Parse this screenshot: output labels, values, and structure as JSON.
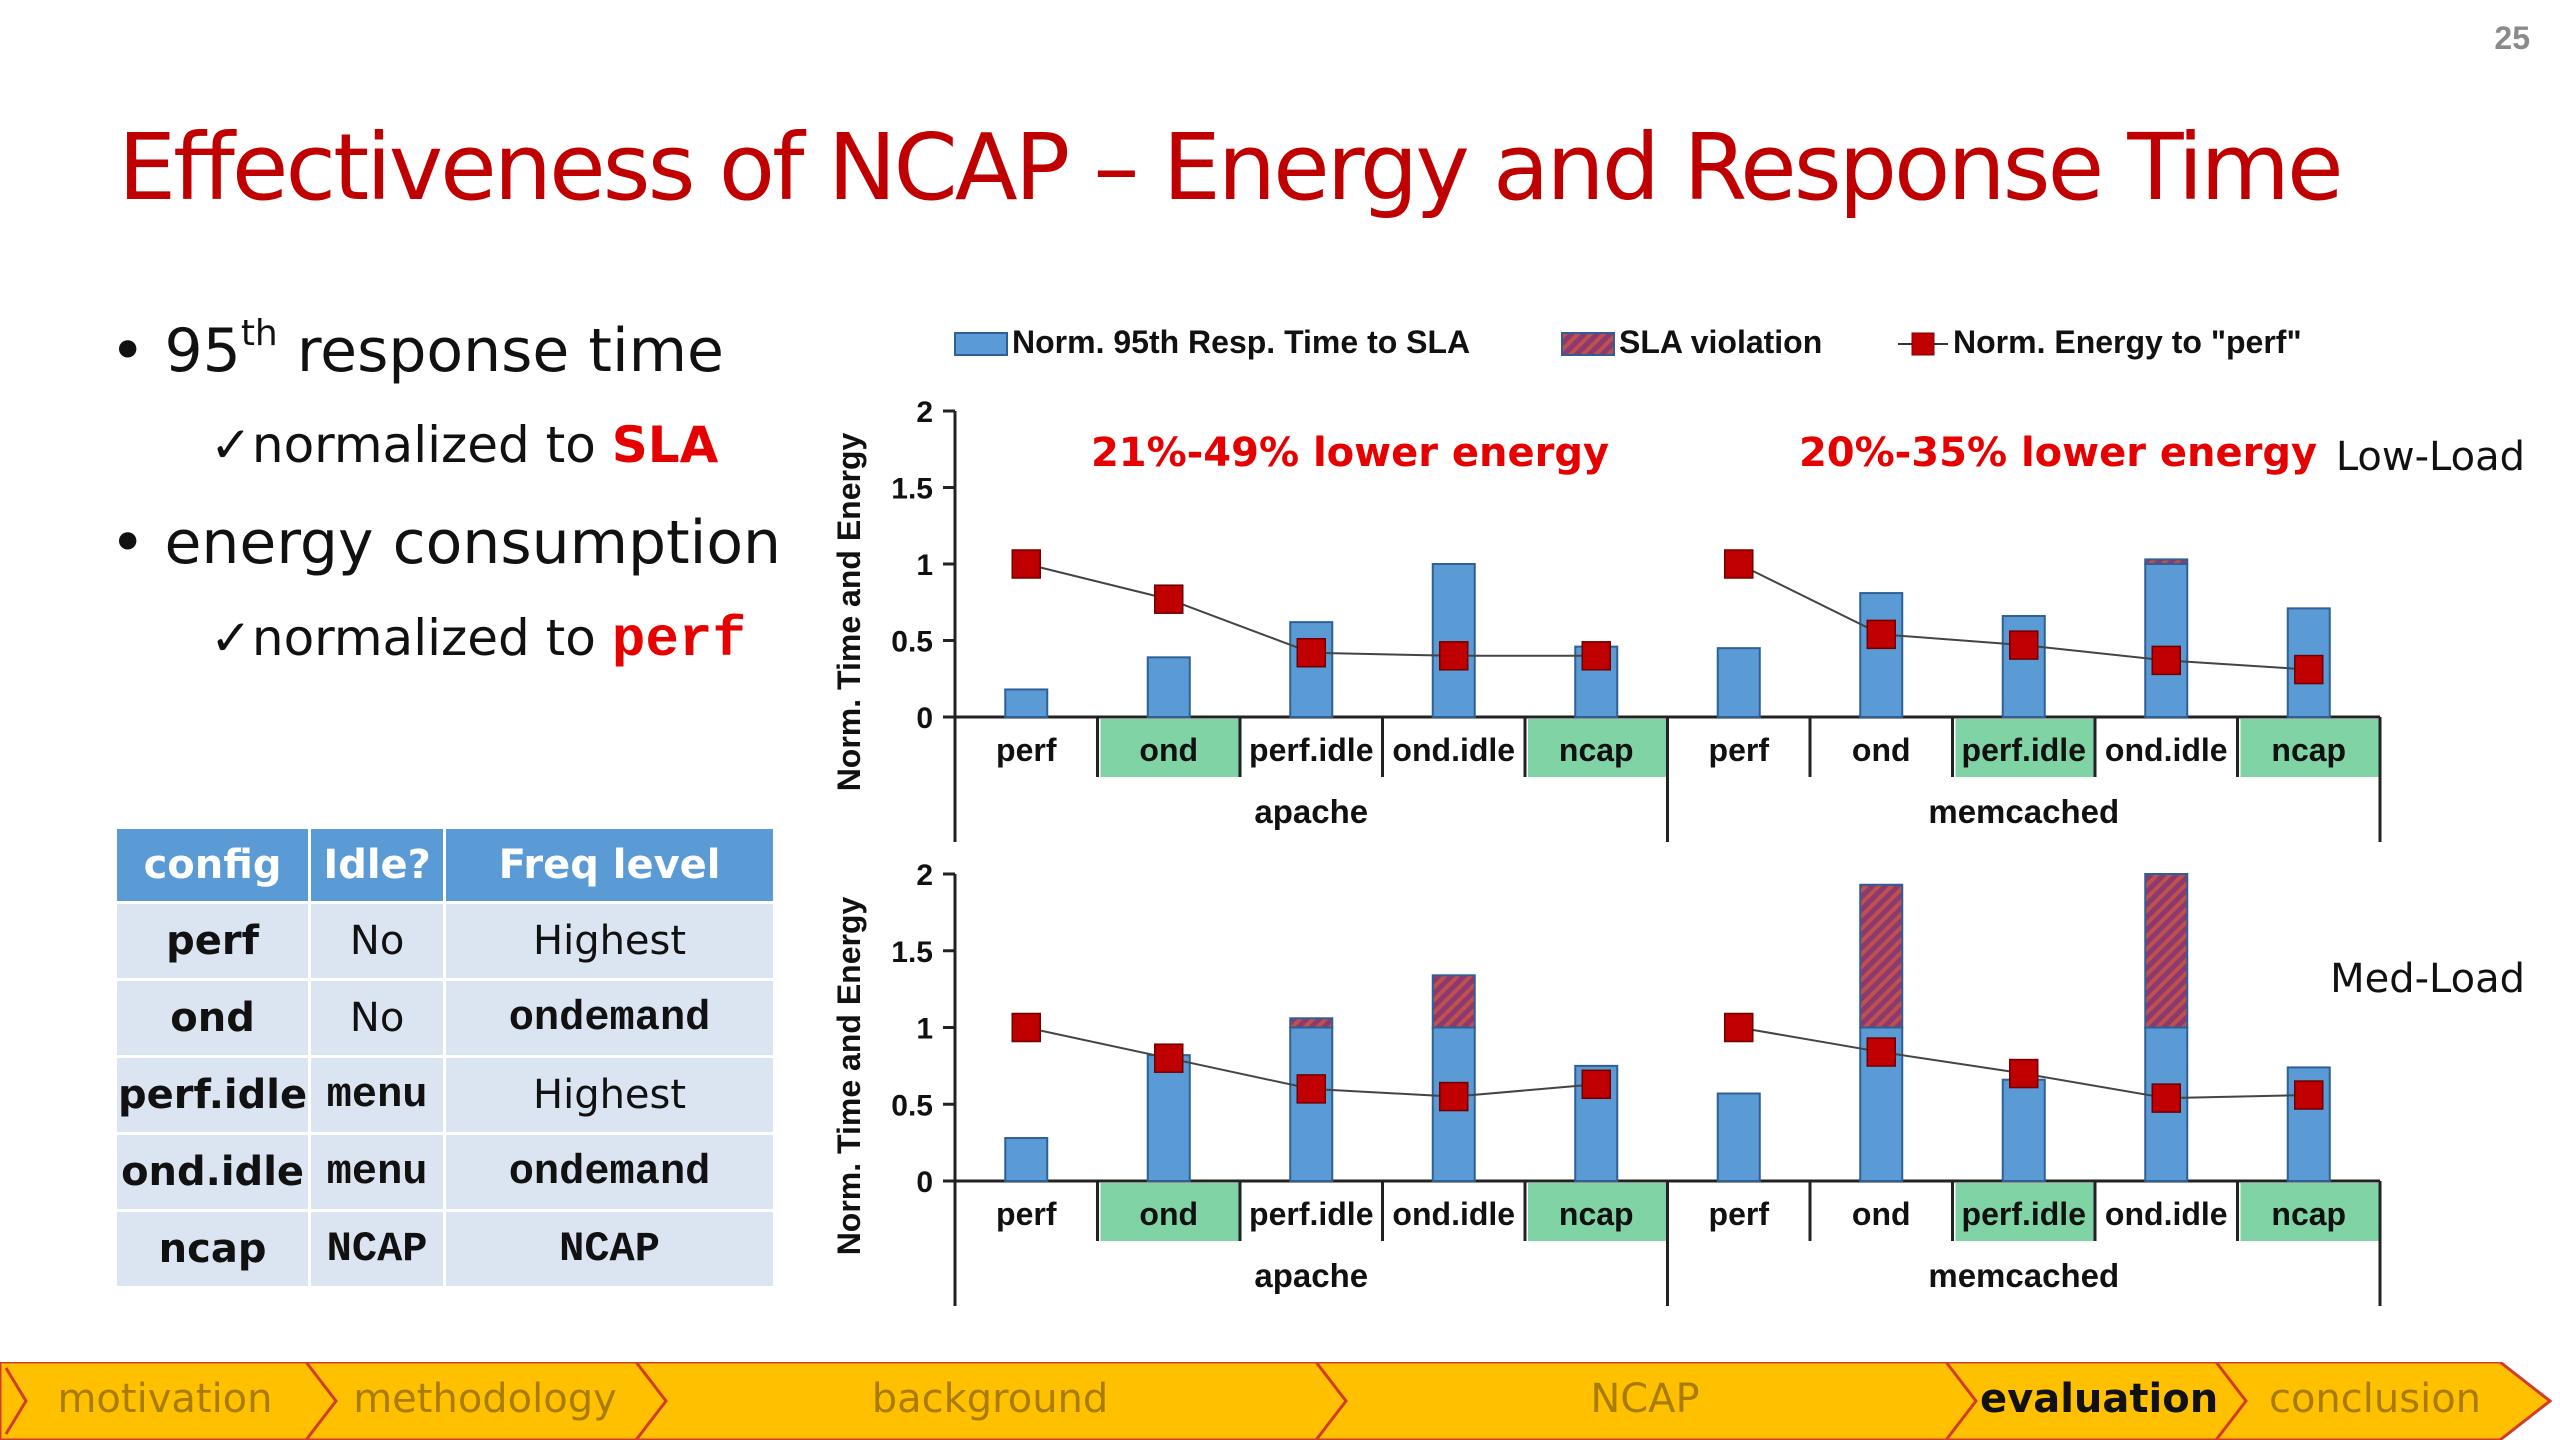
{
  "page_number": "25",
  "title": "Effectiveness of NCAP – Energy and Response Time",
  "bullets": {
    "b1_prefix": "• 95",
    "b1_sup": "th",
    "b1_suffix": " response time",
    "b1_sub_prefix": "✓normalized to ",
    "b1_sub_highlight": "SLA",
    "b2": "• energy consumption",
    "b2_sub_prefix": "✓normalized to ",
    "b2_sub_highlight": "perf"
  },
  "config_table": {
    "headers": [
      "config",
      "Idle?",
      "Freq level"
    ],
    "rows": [
      [
        "perf",
        "No",
        "Highest"
      ],
      [
        "ond",
        "No",
        "ondemand"
      ],
      [
        "perf.idle",
        "menu",
        "Highest"
      ],
      [
        "ond.idle",
        "menu",
        "ondemand"
      ],
      [
        "ncap",
        "NCAP",
        "NCAP"
      ]
    ]
  },
  "legend": {
    "bar": "Norm. 95th Resp. Time to SLA",
    "violation": "SLA violation",
    "line": "Norm. Energy to \"perf\""
  },
  "colors": {
    "bar": "#5b9bd5",
    "bar_edge": "#2e5f95",
    "violation": "#c0504d",
    "marker": "#c00000",
    "highlight": "#7fd3a4",
    "title": "#c00000",
    "breadcrumb_bg": "#ffc000",
    "breadcrumb_border": "#d23c2c"
  },
  "chart_data": [
    {
      "type": "bar",
      "panel_label": "Low-Load",
      "ylabel": "Norm. Time and Energy",
      "ylim": [
        0,
        2
      ],
      "yticks": [
        "0",
        "0.5",
        "1",
        "1.5",
        "2"
      ],
      "groups": [
        "apache",
        "memcached"
      ],
      "categories": [
        "perf",
        "ond",
        "perf.idle",
        "ond.idle",
        "ncap",
        "perf",
        "ond",
        "perf.idle",
        "ond.idle",
        "ncap"
      ],
      "highlighted_categories": [
        1,
        4,
        7,
        9
      ],
      "annotations": [
        "21%-49% lower energy",
        "20%-35% lower energy"
      ],
      "series": [
        {
          "name": "Norm. 95th Resp. Time to SLA",
          "kind": "bar",
          "values": [
            0.18,
            0.39,
            0.62,
            1.0,
            0.46,
            0.45,
            0.81,
            0.66,
            1.0,
            0.71
          ]
        },
        {
          "name": "SLA violation",
          "kind": "stacked",
          "values": [
            0,
            0,
            0,
            0,
            0,
            0,
            0,
            0,
            0.03,
            0
          ]
        },
        {
          "name": "Norm. Energy to \"perf\"",
          "kind": "line",
          "values": [
            1.0,
            0.77,
            0.42,
            0.4,
            0.4,
            1.0,
            0.54,
            0.47,
            0.37,
            0.31
          ]
        }
      ]
    },
    {
      "type": "bar",
      "panel_label": "Med-Load",
      "ylabel": "Norm. Time and Energy",
      "ylim": [
        0,
        2
      ],
      "yticks": [
        "0",
        "0.5",
        "1",
        "1.5",
        "2"
      ],
      "groups": [
        "apache",
        "memcached"
      ],
      "categories": [
        "perf",
        "ond",
        "perf.idle",
        "ond.idle",
        "ncap",
        "perf",
        "ond",
        "perf.idle",
        "ond.idle",
        "ncap"
      ],
      "highlighted_categories": [
        1,
        4,
        7,
        9
      ],
      "annotations": [],
      "series": [
        {
          "name": "Norm. 95th Resp. Time to SLA",
          "kind": "bar",
          "values": [
            0.28,
            0.82,
            1.0,
            1.0,
            0.75,
            0.57,
            1.0,
            0.66,
            1.0,
            0.74
          ]
        },
        {
          "name": "SLA violation",
          "kind": "stacked",
          "values": [
            0,
            0,
            0.06,
            0.34,
            0,
            0,
            0.93,
            0,
            1.0,
            0
          ]
        },
        {
          "name": "Norm. Energy to \"perf\"",
          "kind": "line",
          "values": [
            1.0,
            0.8,
            0.6,
            0.55,
            0.63,
            1.0,
            0.84,
            0.7,
            0.54,
            0.56
          ]
        }
      ]
    }
  ],
  "breadcrumb": {
    "items": [
      {
        "label": "motivation",
        "active": false
      },
      {
        "label": "methodology",
        "active": false
      },
      {
        "label": "background",
        "active": false
      },
      {
        "label": "NCAP",
        "active": false
      },
      {
        "label": "evaluation",
        "active": true
      },
      {
        "label": "conclusion",
        "active": false
      }
    ]
  }
}
